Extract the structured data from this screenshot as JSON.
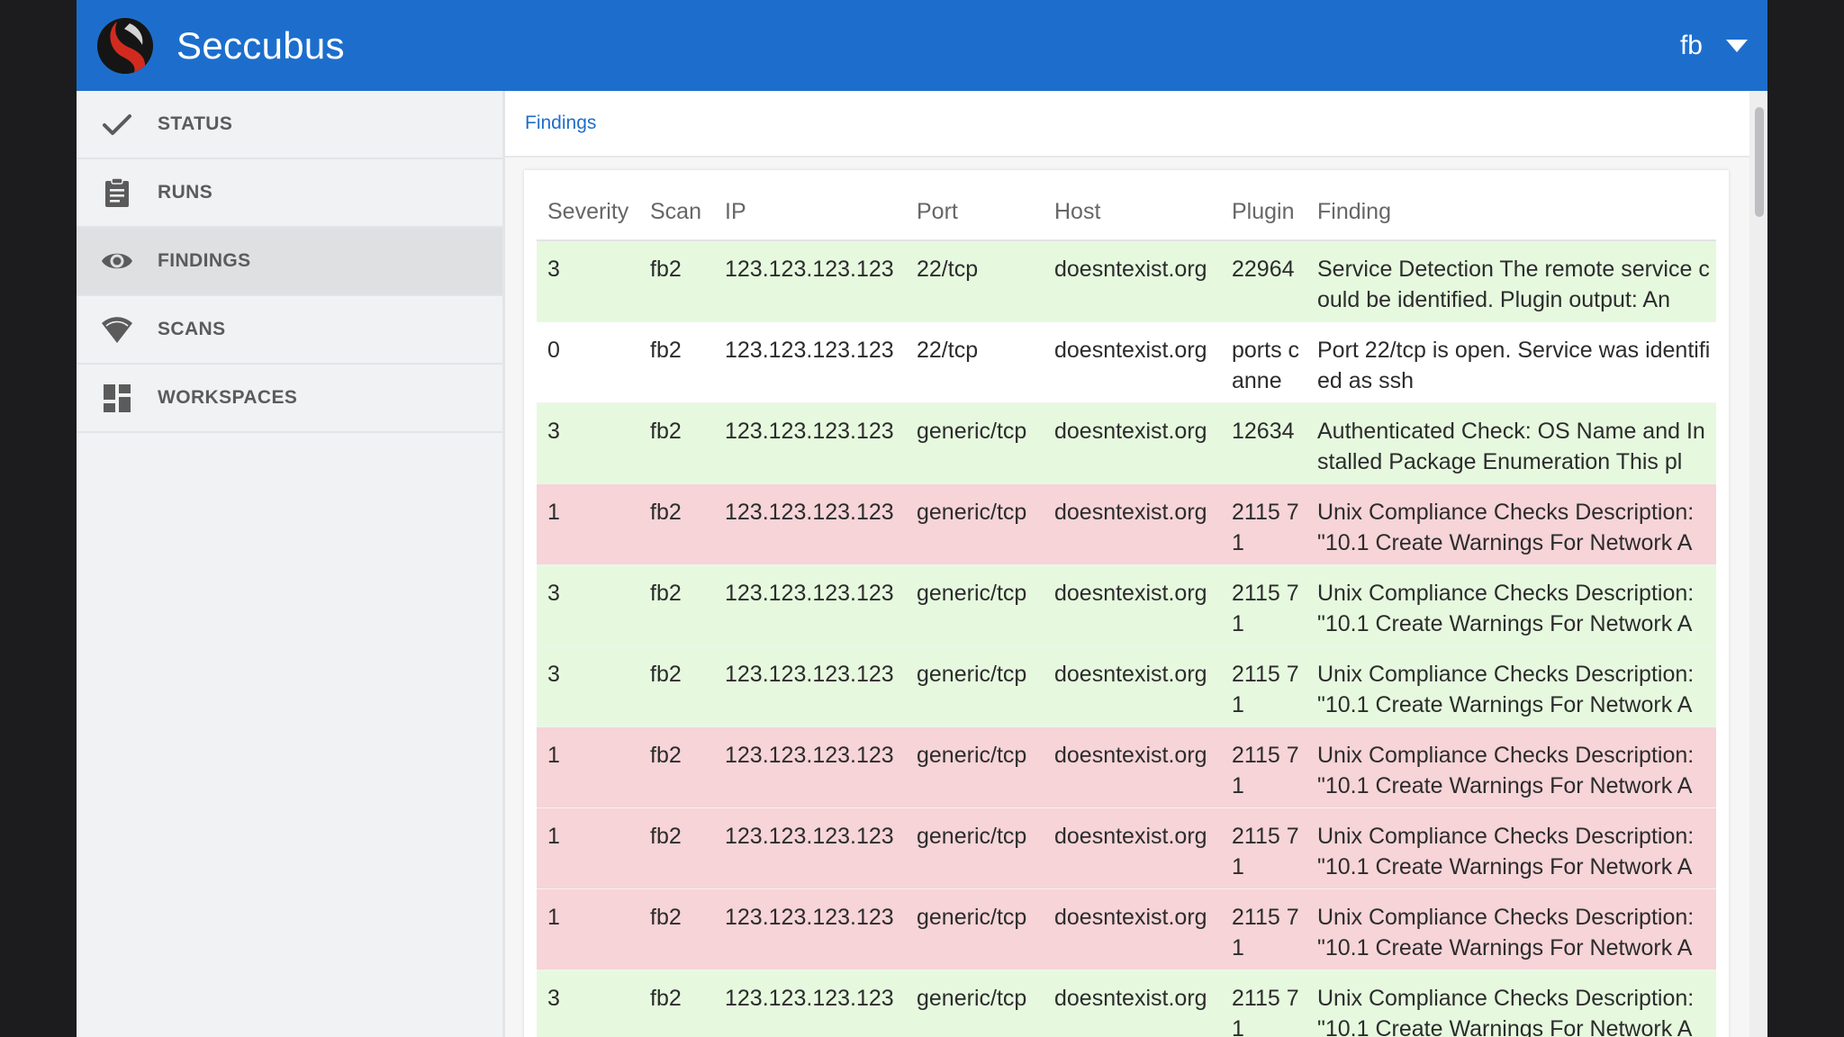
{
  "app": {
    "title": "Seccubus"
  },
  "user": {
    "name": "fb"
  },
  "sidebar": {
    "items": [
      {
        "label": "STATUS",
        "icon": "check-icon",
        "active": false
      },
      {
        "label": "RUNS",
        "icon": "clipboard-icon",
        "active": false
      },
      {
        "label": "FINDINGS",
        "icon": "eye-icon",
        "active": true
      },
      {
        "label": "SCANS",
        "icon": "wifi-icon",
        "active": false
      },
      {
        "label": "WORKSPACES",
        "icon": "dashboard-icon",
        "active": false
      }
    ]
  },
  "breadcrumb": {
    "label": "Findings"
  },
  "table": {
    "headers": [
      "Severity",
      "Scan",
      "IP",
      "Port",
      "Host",
      "Plugin",
      "Finding"
    ],
    "rows": [
      {
        "severity": "3",
        "scan": "fb2",
        "ip": "123.123.123.123",
        "port": "22/tcp",
        "host": "doesntexist.org",
        "plugin": "22964",
        "finding": "Service Detection The remote service could be identified. Plugin output: An",
        "status": "green"
      },
      {
        "severity": "0",
        "scan": "fb2",
        "ip": "123.123.123.123",
        "port": "22/tcp",
        "host": "doesntexist.org",
        "plugin": "ports canne",
        "finding": "Port 22/tcp is open. Service was identified as ssh",
        "status": "white"
      },
      {
        "severity": "3",
        "scan": "fb2",
        "ip": "123.123.123.123",
        "port": "generic/tcp",
        "host": "doesntexist.org",
        "plugin": "12634",
        "finding": "Authenticated Check: OS Name and Installed Package Enumeration This pl",
        "status": "green"
      },
      {
        "severity": "1",
        "scan": "fb2",
        "ip": "123.123.123.123",
        "port": "generic/tcp",
        "host": "doesntexist.org",
        "plugin": "2115 7 1",
        "finding": "Unix Compliance Checks Description: \"10.1 Create Warnings For Network A",
        "status": "red"
      },
      {
        "severity": "3",
        "scan": "fb2",
        "ip": "123.123.123.123",
        "port": "generic/tcp",
        "host": "doesntexist.org",
        "plugin": "2115 7 1",
        "finding": "Unix Compliance Checks Description: \"10.1 Create Warnings For Network A",
        "status": "green"
      },
      {
        "severity": "3",
        "scan": "fb2",
        "ip": "123.123.123.123",
        "port": "generic/tcp",
        "host": "doesntexist.org",
        "plugin": "2115 7 1",
        "finding": "Unix Compliance Checks Description: \"10.1 Create Warnings For Network A",
        "status": "green"
      },
      {
        "severity": "1",
        "scan": "fb2",
        "ip": "123.123.123.123",
        "port": "generic/tcp",
        "host": "doesntexist.org",
        "plugin": "2115 7 1",
        "finding": "Unix Compliance Checks Description: \"10.1 Create Warnings For Network A",
        "status": "red"
      },
      {
        "severity": "1",
        "scan": "fb2",
        "ip": "123.123.123.123",
        "port": "generic/tcp",
        "host": "doesntexist.org",
        "plugin": "2115 7 1",
        "finding": "Unix Compliance Checks Description: \"10.1 Create Warnings For Network A",
        "status": "red"
      },
      {
        "severity": "1",
        "scan": "fb2",
        "ip": "123.123.123.123",
        "port": "generic/tcp",
        "host": "doesntexist.org",
        "plugin": "2115 7 1",
        "finding": "Unix Compliance Checks Description: \"10.1 Create Warnings For Network A",
        "status": "red"
      },
      {
        "severity": "3",
        "scan": "fb2",
        "ip": "123.123.123.123",
        "port": "generic/tcp",
        "host": "doesntexist.org",
        "plugin": "2115 7 1",
        "finding": "Unix Compliance Checks Description: \"10.1 Create Warnings For Network A",
        "status": "green"
      }
    ]
  },
  "colors": {
    "accent": "#1d6ecc",
    "row_green": "#e6f9df",
    "row_red": "#f6d4d8"
  }
}
